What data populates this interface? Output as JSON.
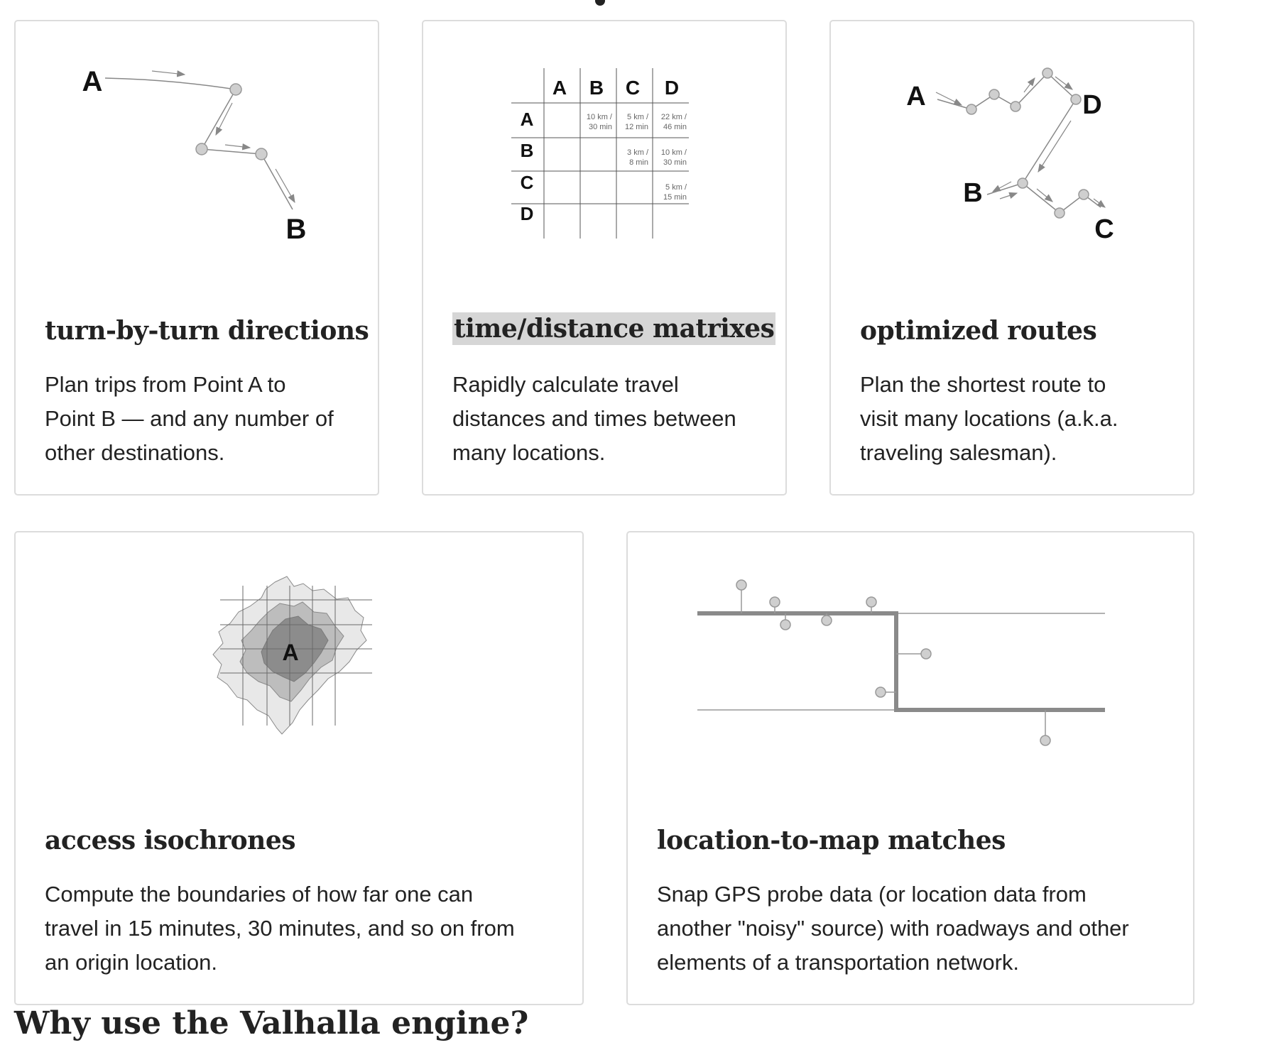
{
  "cards": [
    {
      "title": "turn-by-turn directions",
      "desc_lines": [
        "Plan trips from Point A to",
        "Point B — and any number of",
        "other destinations."
      ],
      "labels": [
        "A",
        "B"
      ]
    },
    {
      "title": "time/distance matrixes",
      "desc_lines": [
        "Rapidly calculate travel",
        "distances and times between",
        "many locations."
      ],
      "matrix": {
        "columns": [
          "A",
          "B",
          "C",
          "D"
        ],
        "rows": [
          "A",
          "B",
          "C",
          "D"
        ],
        "cells": [
          {
            "row": "A",
            "col": "B",
            "l1": "10 km /",
            "l2": "30 min"
          },
          {
            "row": "A",
            "col": "C",
            "l1": "5 km /",
            "l2": "12 min"
          },
          {
            "row": "A",
            "col": "D",
            "l1": "22 km /",
            "l2": "46 min"
          },
          {
            "row": "B",
            "col": "C",
            "l1": "3 km /",
            "l2": "8 min"
          },
          {
            "row": "B",
            "col": "D",
            "l1": "10 km /",
            "l2": "30 min"
          },
          {
            "row": "C",
            "col": "D",
            "l1": "5 km /",
            "l2": "15 min"
          }
        ]
      }
    },
    {
      "title": "optimized routes",
      "desc_lines": [
        "Plan the shortest route to",
        "visit many locations (a.k.a.",
        "traveling salesman)."
      ],
      "labels": [
        "A",
        "B",
        "C",
        "D"
      ]
    },
    {
      "title": "access isochrones",
      "desc_lines": [
        "Compute the boundaries of how far one can",
        "travel in 15 minutes, 30 minutes, and so on from",
        "an origin location."
      ],
      "labels": [
        "A"
      ]
    },
    {
      "title": "location-to-map matches",
      "desc_lines": [
        "Snap GPS probe data (or location data from",
        "another \"noisy\" source) with roadways and other",
        "elements of a transportation network."
      ]
    }
  ],
  "bottom_heading_partial": "Why use the Valhalla engine?",
  "colors": {
    "card_border": "#dcdcdc",
    "highlight": "#d6d6d6",
    "node_fill": "#cfcfcf",
    "route_gray": "#8a8a8a"
  }
}
